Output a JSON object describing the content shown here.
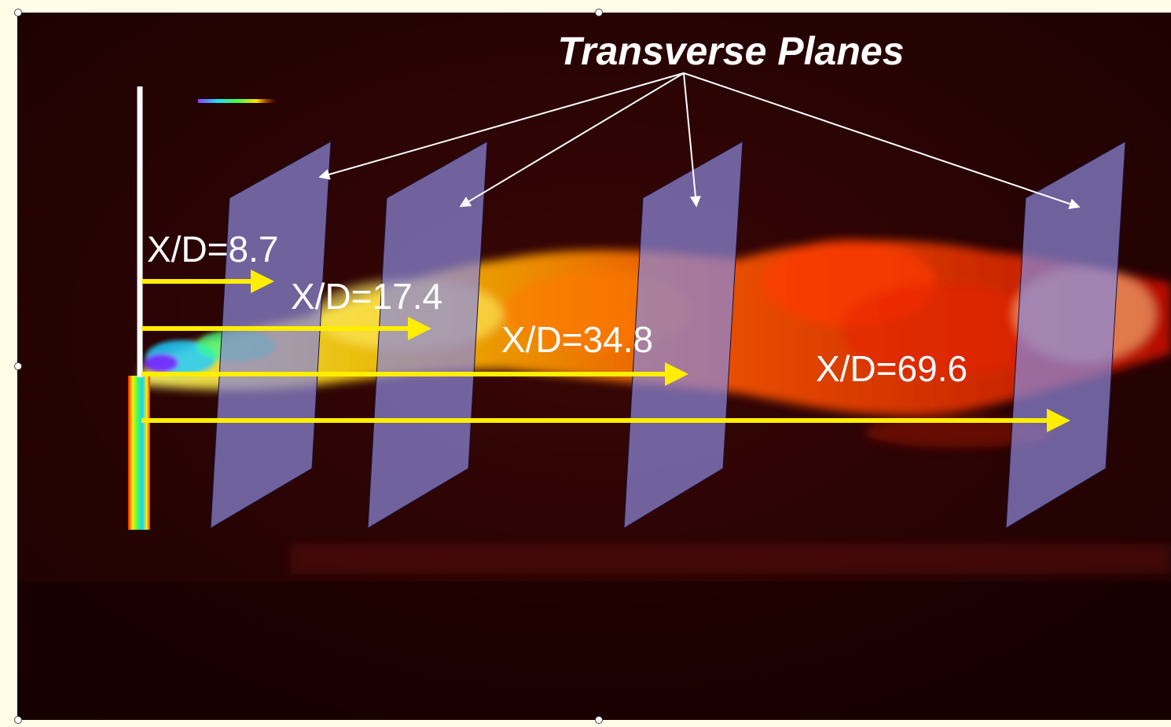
{
  "title": "Transverse Planes",
  "stations": [
    {
      "label": "X/D=8.7"
    },
    {
      "label": "X/D=17.4"
    },
    {
      "label": "X/D=34.8"
    },
    {
      "label": "X/D=69.6"
    }
  ],
  "colors": {
    "background": "#2a0303",
    "plane_fill": "#8a86d8",
    "arrow": "#ffee00",
    "text": "#ffffff",
    "frame_bg": "#fffde8"
  }
}
